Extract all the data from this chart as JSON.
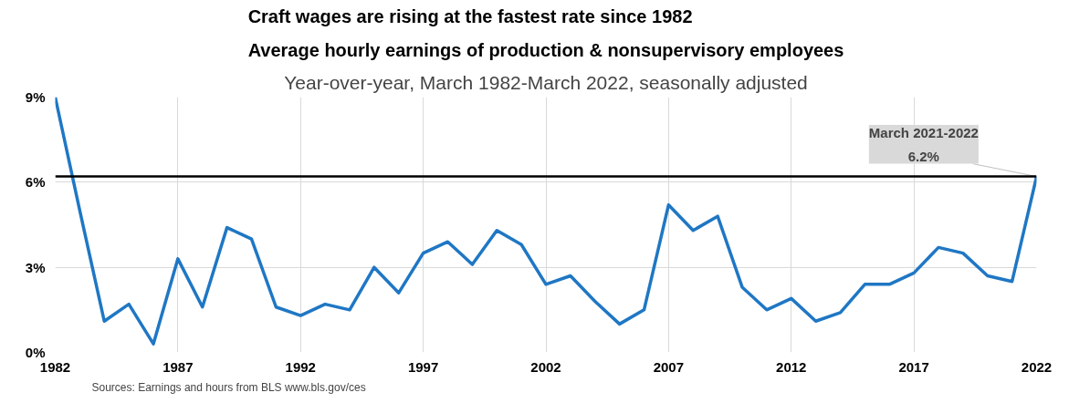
{
  "chart_data": {
    "type": "line",
    "title": "Craft wages are rising at the fastest rate since 1982\nAverage hourly earnings of production & nonsupervisory employees",
    "subtitle": "Year-over-year, March 1982-March 2022, seasonally adjusted",
    "x": [
      1982,
      1983,
      1984,
      1985,
      1986,
      1987,
      1988,
      1989,
      1990,
      1991,
      1992,
      1993,
      1994,
      1995,
      1996,
      1997,
      1998,
      1999,
      2000,
      2001,
      2002,
      2003,
      2004,
      2005,
      2006,
      2007,
      2008,
      2009,
      2010,
      2011,
      2012,
      2013,
      2014,
      2015,
      2016,
      2017,
      2018,
      2019,
      2020,
      2021,
      2022
    ],
    "series": [
      {
        "color": "#1f77c4",
        "values": [
          9.0,
          5.0,
          1.1,
          1.7,
          0.3,
          3.3,
          1.6,
          4.4,
          4.0,
          1.6,
          1.3,
          1.7,
          1.5,
          3.0,
          2.1,
          3.5,
          3.9,
          3.1,
          4.3,
          3.8,
          2.4,
          2.7,
          1.8,
          1.0,
          1.5,
          5.2,
          4.3,
          4.8,
          2.3,
          1.5,
          1.9,
          1.1,
          1.4,
          2.4,
          2.4,
          2.8,
          3.7,
          3.5,
          2.7,
          2.5,
          6.2
        ]
      }
    ],
    "xlim": [
      1982,
      2022
    ],
    "xticks": [
      1982,
      1987,
      1992,
      1997,
      2002,
      2007,
      2012,
      2017,
      2022
    ],
    "ylim": [
      0,
      9
    ],
    "yticks": [
      {
        "value": 0,
        "label": "0%"
      },
      {
        "value": 3,
        "label": "3%"
      },
      {
        "value": 6,
        "label": "6%"
      },
      {
        "value": 9,
        "label": "9%"
      }
    ],
    "ref_lines": [
      {
        "axis": "y",
        "value": 6.2,
        "color": "#000000"
      }
    ],
    "annotations": [
      {
        "text": "March 2021-2022\n6.2%",
        "x": 2022,
        "y": 6.2
      },
      "Sources:  Earnings and hours from BLS www.bls.gov/ces"
    ],
    "grid": true,
    "marker": "none",
    "line_style": "solid"
  }
}
